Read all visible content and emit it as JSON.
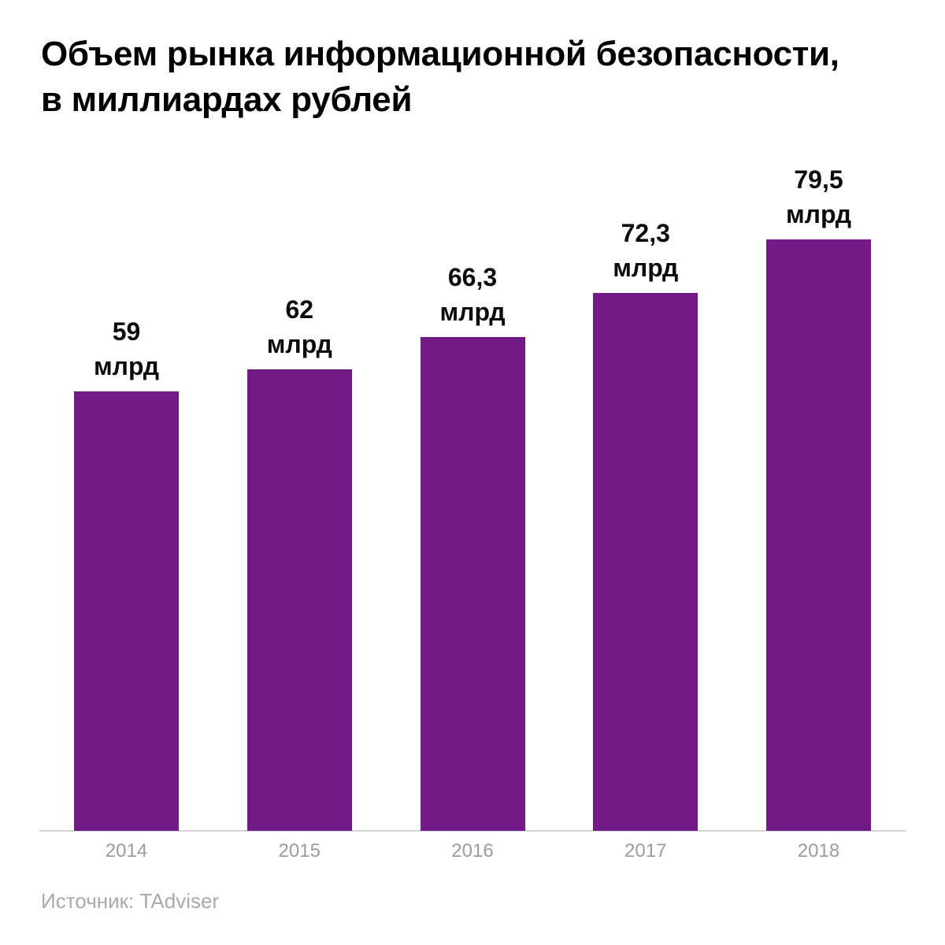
{
  "title": {
    "lines": [
      "Объем рынка информационной безопасности,",
      "в миллиардах рублей"
    ]
  },
  "source": {
    "text": "Источник: TAdviser"
  },
  "colors": {
    "bar": "#721A87",
    "axis": "#D2D2D2",
    "title": "#000000",
    "value_label": "#0B0B0B",
    "year_label": "#9B9B9B",
    "source": "#A9A9A9",
    "background": "#FFFFFF"
  },
  "chart_data": {
    "type": "bar",
    "title": "Объем рынка информационной безопасности, в миллиардах рублей",
    "categories": [
      "2014",
      "2015",
      "2016",
      "2017",
      "2018"
    ],
    "values": [
      59,
      62,
      66.3,
      72.3,
      79.5
    ],
    "value_labels": [
      [
        "59",
        "млрд"
      ],
      [
        "62",
        "млрд"
      ],
      [
        "66,3",
        "млрд"
      ],
      [
        "72,3",
        "млрд"
      ],
      [
        "79,5",
        "млрд"
      ]
    ],
    "unit": "млрд рублей",
    "xlabel": "",
    "ylabel": "",
    "ylim": [
      0,
      85
    ],
    "grid": false,
    "legend": false,
    "bar_color": "#721A87",
    "source": "TAdviser"
  }
}
